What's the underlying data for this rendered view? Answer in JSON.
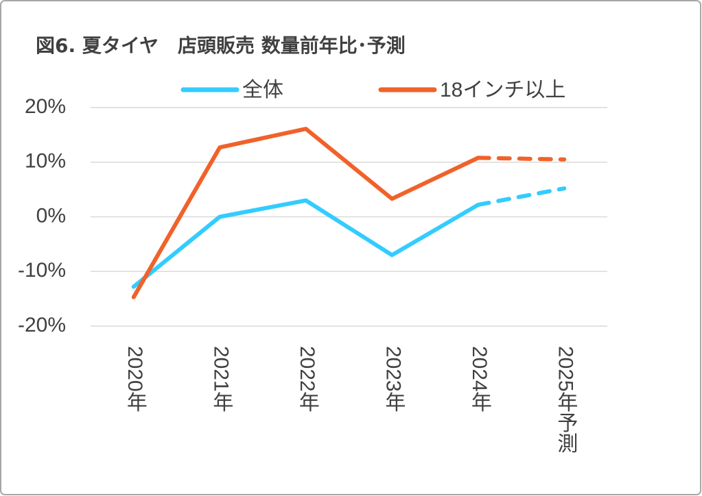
{
  "chart_data": {
    "type": "line",
    "title": "図6. 夏タイヤ　店頭販売 数量前年比･予測",
    "categories": [
      "2020年",
      "2021年",
      "2022年",
      "2023年",
      "2024年",
      "2025年予測"
    ],
    "series": [
      {
        "name": "全体",
        "color": "#33ccff",
        "values": [
          -12.8,
          0,
          3.0,
          -7.0,
          2.2,
          5.2
        ]
      },
      {
        "name": "18インチ以上",
        "color": "#f0622a",
        "values": [
          -14.7,
          12.7,
          16.1,
          3.3,
          10.8,
          10.5
        ]
      }
    ],
    "dashed_from_index": 4,
    "ylim": [
      -20,
      20
    ],
    "yticks": [
      {
        "value": -20,
        "label": "-20%"
      },
      {
        "value": -10,
        "label": "-10%"
      },
      {
        "value": 0,
        "label": "0%"
      },
      {
        "value": 10,
        "label": "10%"
      },
      {
        "value": 20,
        "label": "20%"
      }
    ],
    "grid": true,
    "legend": "top"
  }
}
